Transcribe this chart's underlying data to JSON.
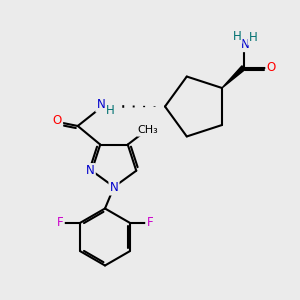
{
  "bg_color": "#ebebeb",
  "bond_color": "#000000",
  "bond_width": 1.5,
  "atom_colors": {
    "N": "#0000cc",
    "O": "#ff0000",
    "F": "#cc00cc",
    "H": "#007070",
    "C": "#000000"
  },
  "font_size": 8.5,
  "figsize": [
    3.0,
    3.0
  ],
  "dpi": 100
}
